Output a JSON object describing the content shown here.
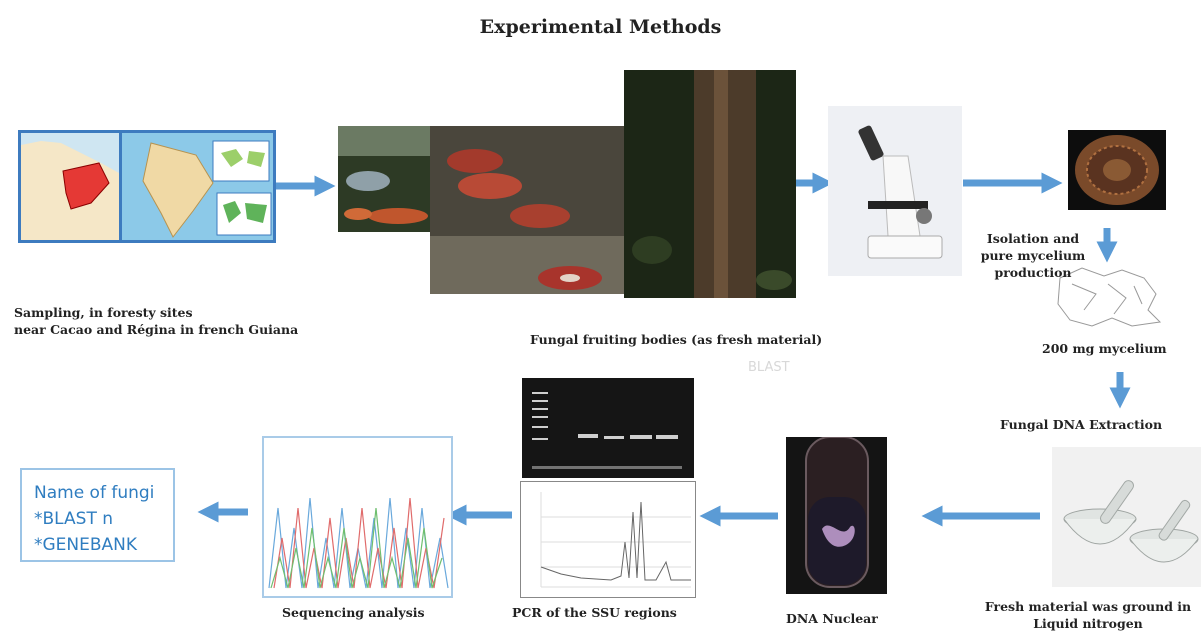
{
  "title": "Experimental Methods",
  "labels": {
    "sampling_line1": "Sampling, in foresty sites",
    "sampling_line2": "near Cacao and Régina in french Guiana",
    "fruiting": "Fungal fruiting bodies (as fresh material)",
    "blast_ghost": "BLAST",
    "isolation_line1": "Isolation and",
    "isolation_line2": "pure mycelium",
    "isolation_line3": "production",
    "mycelium": "200 mg mycelium",
    "dna_extraction": "Fungal DNA Extraction",
    "ground_line1": "Fresh material was ground in",
    "ground_line2": "Liquid nitrogen",
    "dna_nuclear": "DNA Nuclear",
    "pcr": "PCR of the SSU regions",
    "sequencing": "Sequencing analysis"
  },
  "result_box": {
    "line1": "Name of fungi",
    "line2": "*BLAST n",
    "line3": "*GENEBANK"
  },
  "colors": {
    "arrow": "#5b9bd5",
    "box_border": "#9cc4e6",
    "result_text": "#2f7dc0"
  },
  "icons": [
    "map-image",
    "forest-photo",
    "fungi-photo",
    "tree-photo",
    "microscope-image",
    "petri-dish-image",
    "mycelium-sketch",
    "mortar-pestle-image",
    "dna-tube-image",
    "gel-image",
    "chromatogram-image",
    "sequence-image"
  ]
}
